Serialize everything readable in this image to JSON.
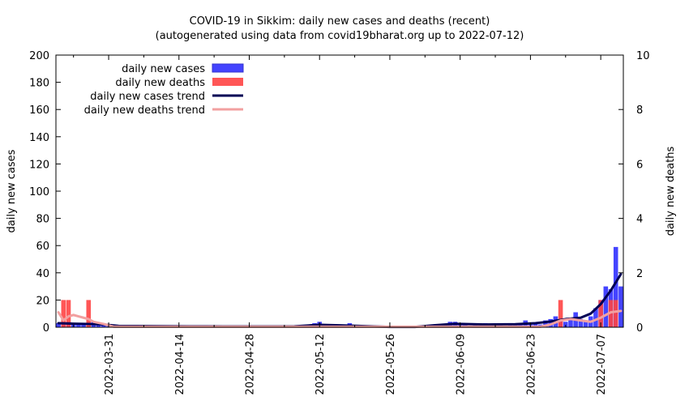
{
  "chart_data": {
    "type": "bar",
    "title": "COVID-19 in Sikkim: daily new cases and deaths (recent)",
    "subtitle": "(autogenerated using data from covid19bharat.org up to 2022-07-12)",
    "ylabel_left": "daily new cases",
    "ylabel_right": "daily new deaths",
    "x_range": [
      "2022-03-21",
      "2022-07-11"
    ],
    "ylim_left": [
      0,
      200
    ],
    "ylim_right": [
      0,
      10
    ],
    "yticks_left": [
      "0",
      "20",
      "40",
      "60",
      "80",
      "100",
      "120",
      "140",
      "160",
      "180",
      "200"
    ],
    "yticks_right": [
      "0",
      "2",
      "4",
      "6",
      "8",
      "10"
    ],
    "xticks": [
      "2022-03-31",
      "2022-04-14",
      "2022-04-28",
      "2022-05-12",
      "2022-05-26",
      "2022-06-09",
      "2022-06-23",
      "2022-07-07"
    ],
    "grid": false,
    "legend_position": "top-left",
    "colors": {
      "cases": "#4444ff",
      "deaths": "#ff4444",
      "cases_trend": "#000055",
      "deaths_trend": "#f2a0a0"
    },
    "series": [
      {
        "name": "daily new cases",
        "kind": "bar",
        "axis": "left",
        "points": [
          [
            "2022-03-21",
            3
          ],
          [
            "2022-03-22",
            2
          ],
          [
            "2022-03-23",
            4
          ],
          [
            "2022-03-24",
            2
          ],
          [
            "2022-03-25",
            3
          ],
          [
            "2022-03-26",
            2
          ],
          [
            "2022-03-27",
            1
          ],
          [
            "2022-03-28",
            4
          ],
          [
            "2022-03-29",
            3
          ],
          [
            "2022-03-30",
            2
          ],
          [
            "2022-03-31",
            1
          ],
          [
            "2022-04-01",
            1
          ],
          [
            "2022-04-02",
            1
          ],
          [
            "2022-04-04",
            1
          ],
          [
            "2022-04-05",
            1
          ],
          [
            "2022-04-06",
            1
          ],
          [
            "2022-04-07",
            1
          ],
          [
            "2022-04-09",
            1
          ],
          [
            "2022-04-11",
            1
          ],
          [
            "2022-04-13",
            1
          ],
          [
            "2022-04-15",
            1
          ],
          [
            "2022-04-19",
            1
          ],
          [
            "2022-04-22",
            1
          ],
          [
            "2022-04-26",
            1
          ],
          [
            "2022-04-29",
            1
          ],
          [
            "2022-05-02",
            1
          ],
          [
            "2022-05-05",
            1
          ],
          [
            "2022-05-10",
            2
          ],
          [
            "2022-05-11",
            3
          ],
          [
            "2022-05-12",
            4
          ],
          [
            "2022-05-13",
            1
          ],
          [
            "2022-05-16",
            1
          ],
          [
            "2022-05-18",
            3
          ],
          [
            "2022-05-20",
            1
          ],
          [
            "2022-06-04",
            1
          ],
          [
            "2022-06-05",
            2
          ],
          [
            "2022-06-06",
            2
          ],
          [
            "2022-06-07",
            4
          ],
          [
            "2022-06-08",
            4
          ],
          [
            "2022-06-09",
            2
          ],
          [
            "2022-06-10",
            2
          ],
          [
            "2022-06-11",
            1
          ],
          [
            "2022-06-12",
            2
          ],
          [
            "2022-06-13",
            1
          ],
          [
            "2022-06-14",
            3
          ],
          [
            "2022-06-15",
            1
          ],
          [
            "2022-06-16",
            2
          ],
          [
            "2022-06-17",
            2
          ],
          [
            "2022-06-18",
            1
          ],
          [
            "2022-06-19",
            3
          ],
          [
            "2022-06-20",
            2
          ],
          [
            "2022-06-21",
            2
          ],
          [
            "2022-06-22",
            5
          ],
          [
            "2022-06-23",
            2
          ],
          [
            "2022-06-24",
            3
          ],
          [
            "2022-06-25",
            2
          ],
          [
            "2022-06-26",
            5
          ],
          [
            "2022-06-27",
            6
          ],
          [
            "2022-06-28",
            8
          ],
          [
            "2022-06-29",
            5
          ],
          [
            "2022-06-30",
            4
          ],
          [
            "2022-07-01",
            7
          ],
          [
            "2022-07-02",
            11
          ],
          [
            "2022-07-03",
            6
          ],
          [
            "2022-07-04",
            4
          ],
          [
            "2022-07-05",
            8
          ],
          [
            "2022-07-06",
            14
          ],
          [
            "2022-07-07",
            20
          ],
          [
            "2022-07-08",
            30
          ],
          [
            "2022-07-09",
            28
          ],
          [
            "2022-07-10",
            59
          ],
          [
            "2022-07-11",
            30
          ]
        ]
      },
      {
        "name": "daily new deaths",
        "kind": "bar",
        "axis": "right",
        "points": [
          [
            "2022-03-22",
            1
          ],
          [
            "2022-03-23",
            1
          ],
          [
            "2022-03-27",
            1
          ],
          [
            "2022-06-29",
            1
          ],
          [
            "2022-07-07",
            1
          ],
          [
            "2022-07-09",
            1
          ],
          [
            "2022-07-10",
            1
          ]
        ]
      },
      {
        "name": "daily new cases trend",
        "kind": "line",
        "axis": "left",
        "points": [
          [
            "2022-03-21",
            3.0
          ],
          [
            "2022-03-24",
            2.6
          ],
          [
            "2022-03-27",
            2.4
          ],
          [
            "2022-03-30",
            2.0
          ],
          [
            "2022-04-02",
            1.0
          ],
          [
            "2022-04-09",
            0.8
          ],
          [
            "2022-04-16",
            0.7
          ],
          [
            "2022-04-23",
            0.6
          ],
          [
            "2022-04-30",
            0.6
          ],
          [
            "2022-05-07",
            0.7
          ],
          [
            "2022-05-12",
            1.8
          ],
          [
            "2022-05-16",
            1.4
          ],
          [
            "2022-05-21",
            0.8
          ],
          [
            "2022-05-26",
            0.2
          ],
          [
            "2022-05-31",
            0.2
          ],
          [
            "2022-06-04",
            1.5
          ],
          [
            "2022-06-08",
            2.5
          ],
          [
            "2022-06-14",
            2.0
          ],
          [
            "2022-06-20",
            2.2
          ],
          [
            "2022-06-24",
            3.0
          ],
          [
            "2022-06-27",
            4.2
          ],
          [
            "2022-06-30",
            6.0
          ],
          [
            "2022-07-03",
            7.0
          ],
          [
            "2022-07-05",
            10.0
          ],
          [
            "2022-07-07",
            17.0
          ],
          [
            "2022-07-09",
            27.0
          ],
          [
            "2022-07-11",
            39.0
          ]
        ]
      },
      {
        "name": "daily new deaths trend",
        "kind": "line",
        "axis": "right",
        "points": [
          [
            "2022-03-21",
            0.55
          ],
          [
            "2022-03-22",
            0.25
          ],
          [
            "2022-03-23",
            0.4
          ],
          [
            "2022-03-24",
            0.45
          ],
          [
            "2022-03-25",
            0.4
          ],
          [
            "2022-03-26",
            0.35
          ],
          [
            "2022-03-27",
            0.3
          ],
          [
            "2022-03-28",
            0.2
          ],
          [
            "2022-03-30",
            0.12
          ],
          [
            "2022-04-01",
            0.02
          ],
          [
            "2022-06-25",
            0.02
          ],
          [
            "2022-06-27",
            0.1
          ],
          [
            "2022-06-29",
            0.25
          ],
          [
            "2022-07-01",
            0.3
          ],
          [
            "2022-07-03",
            0.25
          ],
          [
            "2022-07-05",
            0.2
          ],
          [
            "2022-07-07",
            0.35
          ],
          [
            "2022-07-08",
            0.45
          ],
          [
            "2022-07-09",
            0.55
          ],
          [
            "2022-07-11",
            0.6
          ]
        ]
      }
    ]
  }
}
